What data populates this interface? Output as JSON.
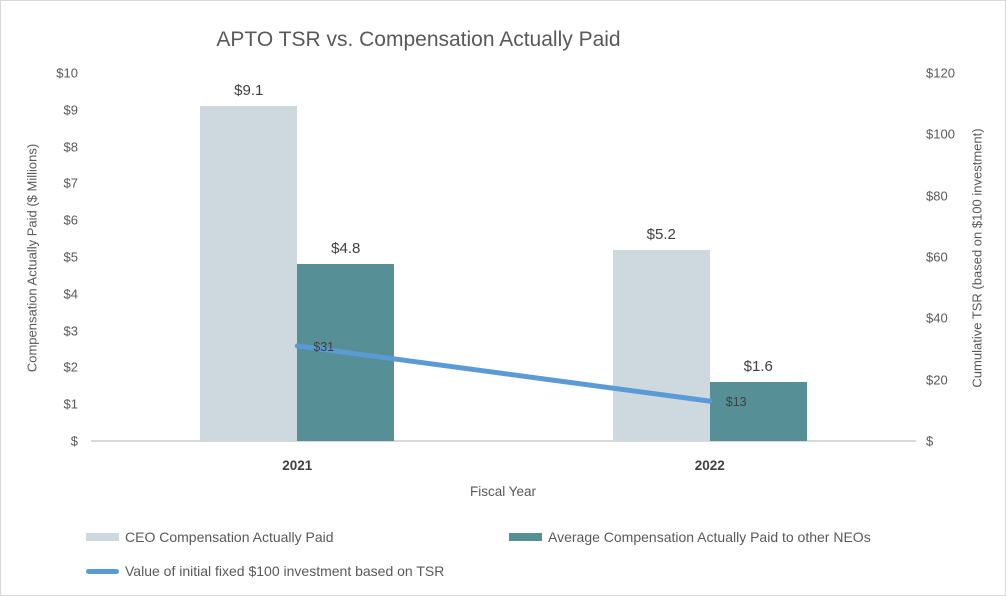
{
  "chart_data": {
    "type": "bar",
    "title": "APTO TSR vs. Compensation Actually Paid",
    "categories": [
      "2021",
      "2022"
    ],
    "series": [
      {
        "name": "CEO Compensation Actually Paid",
        "type": "bar",
        "axis": "left",
        "color": "#cdd9de",
        "values": [
          9.1,
          5.2
        ],
        "data_labels": [
          "$9.1",
          "$5.2"
        ]
      },
      {
        "name": "Average Compensation Actually Paid to other NEOs",
        "type": "bar",
        "axis": "left",
        "color": "#578f96",
        "values": [
          4.8,
          1.6
        ],
        "data_labels": [
          "$4.8",
          "$1.6"
        ]
      },
      {
        "name": "Value of initial fixed $100 investment based on TSR",
        "type": "line",
        "axis": "right",
        "color": "#5b9bd5",
        "values": [
          31,
          13
        ],
        "data_labels": [
          "$31",
          "$13"
        ]
      }
    ],
    "xlabel": "Fiscal Year",
    "left_axis": {
      "title": "Compensation Actually Paid ($ Millions)",
      "min": 0,
      "max": 10,
      "tick_labels": [
        "$",
        "$1",
        "$2",
        "$3",
        "$4",
        "$5",
        "$6",
        "$7",
        "$8",
        "$9",
        "$10"
      ]
    },
    "right_axis": {
      "title": "Cumulative TSR (based on $100 investment)",
      "min": 0,
      "max": 120,
      "tick_labels": [
        "$",
        "$20",
        "$40",
        "$60",
        "$80",
        "$100",
        "$120"
      ]
    },
    "legend_position": "bottom",
    "grid": false,
    "text_colors": {
      "title": "#595959",
      "axis": "#595959",
      "data_label": "#404040"
    }
  }
}
